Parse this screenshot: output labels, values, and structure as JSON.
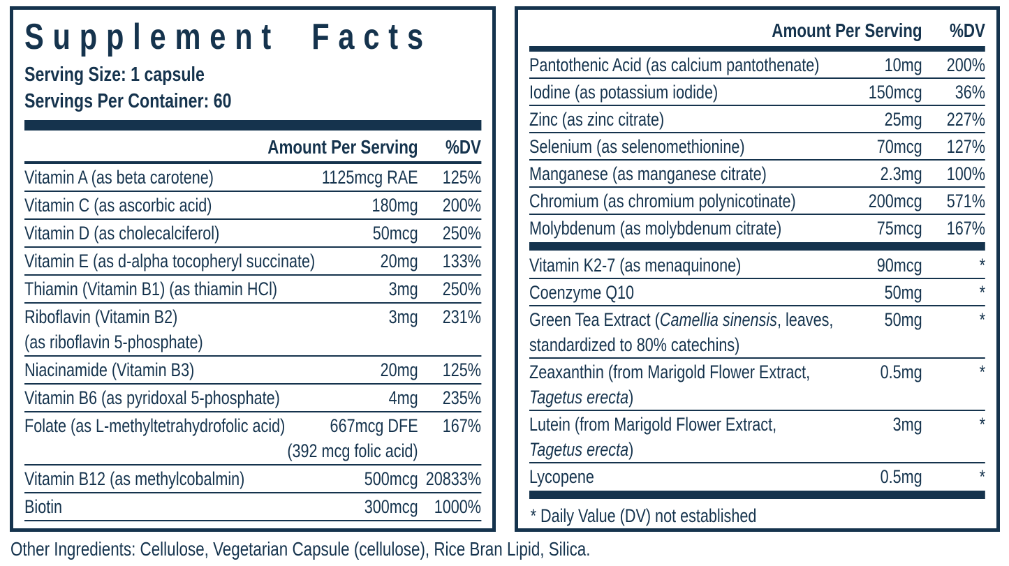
{
  "colors": {
    "ink": "#15334d",
    "background": "#ffffff"
  },
  "title": "Supplement Facts",
  "serving_size": "Serving Size: 1 capsule",
  "servings_per_container": "Servings Per Container: 60",
  "columns": {
    "amount": "Amount Per Serving",
    "dv": "%DV"
  },
  "left_panel": {
    "rows": [
      {
        "name_lines": [
          [
            {
              "t": "Vitamin A (as beta carotene)"
            }
          ]
        ],
        "amount_lines": [
          "1125mcg RAE"
        ],
        "dv": "125%"
      },
      {
        "name_lines": [
          [
            {
              "t": "Vitamin C (as ascorbic acid)"
            }
          ]
        ],
        "amount_lines": [
          "180mg"
        ],
        "dv": "200%"
      },
      {
        "name_lines": [
          [
            {
              "t": "Vitamin D (as cholecalciferol)"
            }
          ]
        ],
        "amount_lines": [
          "50mcg"
        ],
        "dv": "250%"
      },
      {
        "name_lines": [
          [
            {
              "t": "Vitamin E (as d-alpha tocopheryl succinate)"
            }
          ]
        ],
        "amount_lines": [
          "20mg"
        ],
        "dv": "133%"
      },
      {
        "name_lines": [
          [
            {
              "t": "Thiamin (Vitamin B1) (as thiamin HCl)"
            }
          ]
        ],
        "amount_lines": [
          "3mg"
        ],
        "dv": "250%"
      },
      {
        "name_lines": [
          [
            {
              "t": "Riboflavin (Vitamin B2)"
            }
          ],
          [
            {
              "t": "(as riboflavin 5-phosphate)"
            }
          ]
        ],
        "amount_lines": [
          "3mg"
        ],
        "dv": "231%"
      },
      {
        "name_lines": [
          [
            {
              "t": "Niacinamide (Vitamin B3)"
            }
          ]
        ],
        "amount_lines": [
          "20mg"
        ],
        "dv": "125%"
      },
      {
        "name_lines": [
          [
            {
              "t": "Vitamin B6 (as pyridoxal 5-phosphate)"
            }
          ]
        ],
        "amount_lines": [
          "4mg"
        ],
        "dv": "235%"
      },
      {
        "name_lines": [
          [
            {
              "t": "Folate (as L-methyltetrahydrofolic acid)"
            }
          ]
        ],
        "amount_lines": [
          "667mcg DFE",
          "(392 mcg folic acid)"
        ],
        "dv": "167%"
      },
      {
        "name_lines": [
          [
            {
              "t": "Vitamin B12 (as methylcobalmin)"
            }
          ]
        ],
        "amount_lines": [
          "500mcg"
        ],
        "dv": "20833%"
      },
      {
        "name_lines": [
          [
            {
              "t": "Biotin"
            }
          ]
        ],
        "amount_lines": [
          "300mcg"
        ],
        "dv": "1000%"
      }
    ]
  },
  "right_panel": {
    "rows_top": [
      {
        "name_lines": [
          [
            {
              "t": "Pantothenic Acid (as calcium pantothenate)"
            }
          ]
        ],
        "amount_lines": [
          "10mg"
        ],
        "dv": "200%"
      },
      {
        "name_lines": [
          [
            {
              "t": "Iodine (as potassium iodide)"
            }
          ]
        ],
        "amount_lines": [
          "150mcg"
        ],
        "dv": "36%"
      },
      {
        "name_lines": [
          [
            {
              "t": "Zinc (as zinc citrate)"
            }
          ]
        ],
        "amount_lines": [
          "25mg"
        ],
        "dv": "227%"
      },
      {
        "name_lines": [
          [
            {
              "t": "Selenium (as selenomethionine)"
            }
          ]
        ],
        "amount_lines": [
          "70mcg"
        ],
        "dv": "127%"
      },
      {
        "name_lines": [
          [
            {
              "t": "Manganese (as manganese citrate)"
            }
          ]
        ],
        "amount_lines": [
          "2.3mg"
        ],
        "dv": "100%"
      },
      {
        "name_lines": [
          [
            {
              "t": "Chromium (as chromium polynicotinate)"
            }
          ]
        ],
        "amount_lines": [
          "200mcg"
        ],
        "dv": "571%"
      },
      {
        "name_lines": [
          [
            {
              "t": "Molybdenum (as molybdenum citrate)"
            }
          ]
        ],
        "amount_lines": [
          "75mcg"
        ],
        "dv": "167%"
      }
    ],
    "rows_bottom": [
      {
        "name_lines": [
          [
            {
              "t": "Vitamin K2-7 (as menaquinone)"
            }
          ]
        ],
        "amount_lines": [
          "90mcg"
        ],
        "dv": "*"
      },
      {
        "name_lines": [
          [
            {
              "t": "Coenzyme Q10"
            }
          ]
        ],
        "amount_lines": [
          "50mg"
        ],
        "dv": "*"
      },
      {
        "name_lines": [
          [
            {
              "t": "Green Tea Extract ("
            },
            {
              "t": "Camellia sinensis",
              "i": true
            },
            {
              "t": ", leaves,"
            }
          ],
          [
            {
              "t": "standardized to 80% catechins)"
            }
          ]
        ],
        "amount_lines": [
          "50mg"
        ],
        "dv": "*"
      },
      {
        "name_lines": [
          [
            {
              "t": "Zeaxanthin (from Marigold Flower Extract,"
            }
          ],
          [
            {
              "t": "Tagetus erecta",
              "i": true
            },
            {
              "t": ")"
            }
          ]
        ],
        "amount_lines": [
          "0.5mg"
        ],
        "dv": "*"
      },
      {
        "name_lines": [
          [
            {
              "t": "Lutein (from Marigold Flower Extract,"
            }
          ],
          [
            {
              "t": "Tagetus erecta",
              "i": true
            },
            {
              "t": ")"
            }
          ]
        ],
        "amount_lines": [
          "3mg"
        ],
        "dv": "*"
      },
      {
        "name_lines": [
          [
            {
              "t": "Lycopene"
            }
          ]
        ],
        "amount_lines": [
          "0.5mg"
        ],
        "dv": "*"
      }
    ],
    "footnote": "* Daily Value (DV) not established"
  },
  "other_ingredients": "Other Ingredients: Cellulose, Vegetarian Capsule (cellulose), Rice Bran Lipid, Silica."
}
